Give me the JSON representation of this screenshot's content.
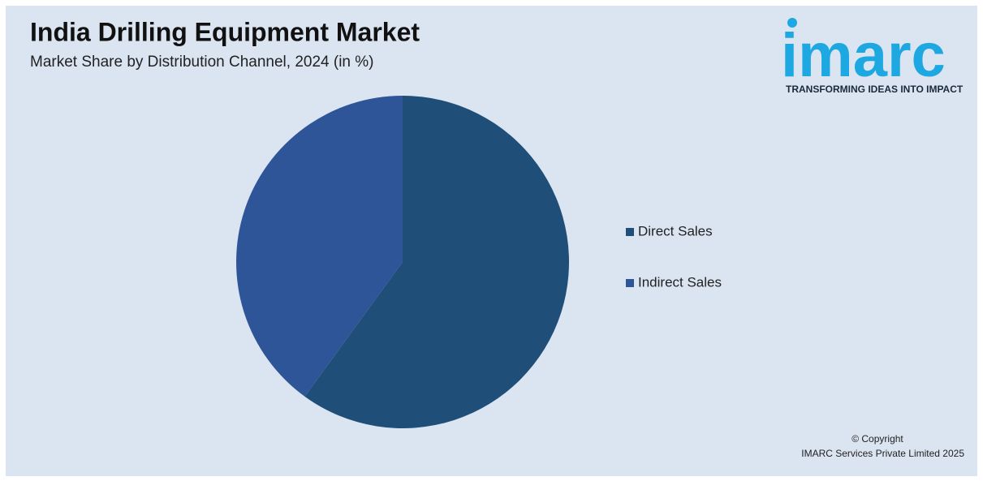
{
  "chart_data": {
    "type": "pie",
    "title": "India Drilling Equipment Market",
    "subtitle": "Market Share by Distribution Channel, 2024 (in %)",
    "categories": [
      "Direct Sales",
      "Indirect Sales"
    ],
    "values": [
      60,
      40
    ],
    "colors": [
      "#1f4e79",
      "#2e5597"
    ],
    "legend": "right"
  },
  "logo": {
    "name": "imarc",
    "tagline": "TRANSFORMING IDEAS INTO IMPACT"
  },
  "copyright": [
    "© Copyright",
    "IMARC Services Private Limited 2025"
  ]
}
